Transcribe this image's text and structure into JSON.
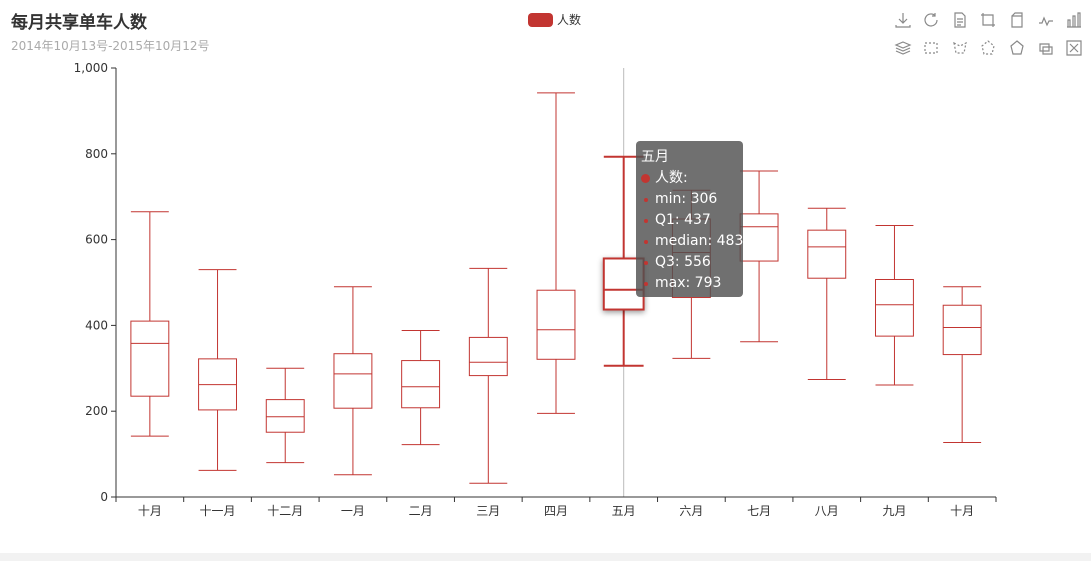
{
  "title": "每月共享单车人数",
  "subtitle": "2014年10月13号-2015年10月12号",
  "legend": {
    "label": "人数",
    "color": "#c23531"
  },
  "toolbox": {
    "row1": [
      "download-icon",
      "refresh-icon",
      "data-view-icon",
      "zoom-icon",
      "zoom-reset-icon",
      "line-chart-icon",
      "bar-chart-icon"
    ],
    "row2": [
      "stack-icon",
      "rect-select-icon",
      "lasso-select-icon",
      "polygon-select-icon",
      "keep-select-icon",
      "clear-select-icon",
      "fullscreen-icon"
    ]
  },
  "chart_data": {
    "type": "boxplot",
    "title": "每月共享单车人数",
    "subtitle": "2014年10月13号-2015年10月12号",
    "categories": [
      "十月",
      "十一月",
      "十二月",
      "一月",
      "二月",
      "三月",
      "四月",
      "五月",
      "六月",
      "七月",
      "八月",
      "九月",
      "十月"
    ],
    "series": [
      {
        "name": "人数",
        "color": "#c23531",
        "values": [
          [
            142,
            235,
            358,
            410,
            665
          ],
          [
            62,
            203,
            262,
            322,
            530
          ],
          [
            80,
            151,
            187,
            227,
            300
          ],
          [
            52,
            207,
            287,
            334,
            490
          ],
          [
            122,
            208,
            257,
            318,
            388
          ],
          [
            32,
            283,
            314,
            372,
            533
          ],
          [
            195,
            321,
            390,
            482,
            942
          ],
          [
            306,
            437,
            483,
            556,
            793
          ],
          [
            323,
            465,
            570,
            648,
            715
          ],
          [
            362,
            550,
            630,
            660,
            760
          ],
          [
            274,
            510,
            583,
            622,
            673
          ],
          [
            261,
            375,
            448,
            507,
            633
          ],
          [
            127,
            332,
            395,
            447,
            490
          ]
        ]
      }
    ],
    "ylim": [
      0,
      1000
    ],
    "yticks": [
      "0",
      "200",
      "400",
      "600",
      "800",
      "1,000"
    ],
    "grid": false,
    "legend_position": "top-center",
    "highlighted": "五月"
  },
  "tooltip": {
    "category": "五月",
    "series": "人数:",
    "lines": [
      "min: 306",
      "Q1: 437",
      "median: 483",
      "Q3: 556",
      "max: 793"
    ]
  }
}
